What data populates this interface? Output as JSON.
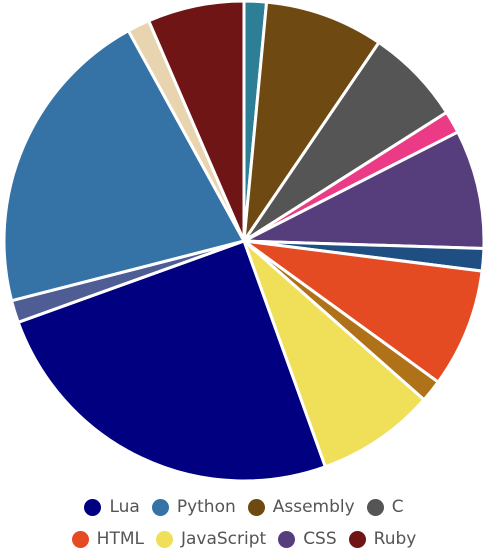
{
  "chart_data": {
    "type": "pie",
    "slices": [
      {
        "label": "",
        "value": 1.5,
        "color": "#2d7f95"
      },
      {
        "label": "Assembly",
        "value": 8,
        "color": "#6e4911"
      },
      {
        "label": "C",
        "value": 6.5,
        "color": "#555555"
      },
      {
        "label": "",
        "value": 1.5,
        "color": "#ec3b86"
      },
      {
        "label": "CSS",
        "value": 8,
        "color": "#563d7c"
      },
      {
        "label": "",
        "value": 1.5,
        "color": "#1f4e82"
      },
      {
        "label": "HTML",
        "value": 8,
        "color": "#e44b23"
      },
      {
        "label": "",
        "value": 1.5,
        "color": "#b07219"
      },
      {
        "label": "JavaScript",
        "value": 8,
        "color": "#f0df59"
      },
      {
        "label": "Lua",
        "value": 25,
        "color": "#000080"
      },
      {
        "label": "",
        "value": 1.5,
        "color": "#4f5d95"
      },
      {
        "label": "Python",
        "value": 21,
        "color": "#3572a5"
      },
      {
        "label": "",
        "value": 1.5,
        "color": "#e8d5b0"
      },
      {
        "label": "Ruby",
        "value": 6.5,
        "color": "#701516"
      }
    ],
    "legend": {
      "position": "bottom",
      "rows": [
        [
          {
            "label": "Lua",
            "color": "#000080"
          },
          {
            "label": "Python",
            "color": "#3572a5"
          },
          {
            "label": "Assembly",
            "color": "#6e4911"
          },
          {
            "label": "C",
            "color": "#555555"
          }
        ],
        [
          {
            "label": "HTML",
            "color": "#e44b23"
          },
          {
            "label": "JavaScript",
            "color": "#f0df59"
          },
          {
            "label": "CSS",
            "color": "#563d7c"
          },
          {
            "label": "Ruby",
            "color": "#701516"
          }
        ]
      ]
    }
  }
}
